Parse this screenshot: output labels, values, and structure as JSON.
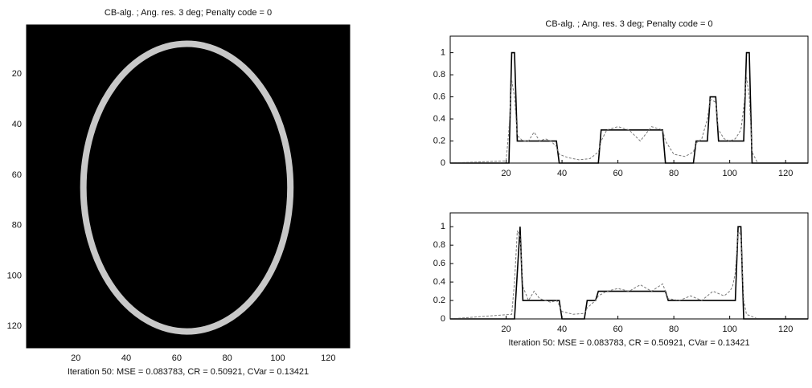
{
  "chart_data": [
    {
      "type": "image",
      "title": "CB-alg. ; Ang. res. 3 deg;  Penalty code = 0",
      "x_label": "Iteration 50:  MSE = 0.083783,  CR = 0.50921,  CVar = 0.13421",
      "xlim": [
        0.5,
        128.5
      ],
      "ylim": [
        128.5,
        0.5
      ],
      "xticks": [
        20,
        40,
        60,
        80,
        100,
        120
      ],
      "yticks": [
        20,
        40,
        60,
        80,
        100,
        120
      ],
      "ellipse": {
        "cx": 64,
        "cy": 65,
        "rx": 41,
        "ry": 57
      }
    },
    {
      "type": "line",
      "title": "CB-alg. ; Ang. res. 3 deg;  Penalty code = 0",
      "x": [
        0,
        20,
        21,
        22,
        23,
        24,
        26,
        28,
        30,
        32,
        34,
        36,
        38,
        39,
        42,
        46,
        50,
        53,
        54,
        56,
        60,
        64,
        68,
        72,
        76,
        77,
        80,
        84,
        87,
        88,
        90,
        92,
        93,
        95,
        96,
        98,
        100,
        102,
        104,
        105,
        106,
        107,
        108,
        110,
        128
      ],
      "series": [
        {
          "color": "#000000",
          "style": "solid",
          "values": [
            0,
            0,
            0,
            1,
            1,
            0.2,
            0.2,
            0.2,
            0.2,
            0.2,
            0.2,
            0.2,
            0.2,
            0,
            0,
            0,
            0,
            0,
            0.3,
            0.3,
            0.3,
            0.3,
            0.3,
            0.3,
            0.3,
            0,
            0,
            0,
            0,
            0.2,
            0.2,
            0.2,
            0.6,
            0.6,
            0.2,
            0.2,
            0.2,
            0.2,
            0.2,
            0.2,
            1,
            1,
            0,
            0,
            0
          ]
        },
        {
          "color": "#777777",
          "style": "dashed",
          "values": [
            0,
            0.02,
            0.3,
            0.75,
            0.6,
            0.25,
            0.2,
            0.2,
            0.28,
            0.2,
            0.22,
            0.2,
            0.15,
            0.08,
            0.05,
            0.03,
            0.04,
            0.1,
            0.2,
            0.3,
            0.33,
            0.3,
            0.2,
            0.33,
            0.3,
            0.2,
            0.08,
            0.06,
            0.1,
            0.18,
            0.22,
            0.4,
            0.58,
            0.55,
            0.3,
            0.22,
            0.2,
            0.22,
            0.3,
            0.5,
            0.78,
            0.6,
            0.1,
            0,
            0
          ]
        }
      ],
      "xlim": [
        0,
        128
      ],
      "ylim": [
        0,
        1.15
      ],
      "xticks": [
        20,
        40,
        60,
        80,
        100,
        120
      ],
      "yticks": [
        0,
        0.2,
        0.4,
        0.6,
        0.8,
        1
      ]
    },
    {
      "type": "line",
      "x_label": "Iteration 50:  MSE = 0.083783,  CR = 0.50921,  CVar = 0.13421",
      "x": [
        0,
        22,
        23,
        24,
        25,
        26,
        28,
        30,
        32,
        34,
        36,
        38,
        39,
        40,
        44,
        48,
        49,
        52,
        53,
        56,
        60,
        64,
        68,
        72,
        76,
        77,
        78,
        82,
        86,
        90,
        94,
        98,
        100,
        101,
        102,
        103,
        104,
        105,
        106,
        110,
        128
      ],
      "series": [
        {
          "color": "#000000",
          "style": "solid",
          "values": [
            0,
            0,
            0,
            0.5,
            1,
            0.2,
            0.2,
            0.2,
            0.2,
            0.2,
            0.2,
            0.2,
            0.2,
            0,
            0,
            0,
            0.2,
            0.2,
            0.3,
            0.3,
            0.3,
            0.3,
            0.3,
            0.3,
            0.3,
            0.3,
            0.2,
            0.2,
            0.2,
            0.2,
            0.2,
            0.2,
            0.2,
            0.2,
            0.2,
            1,
            1,
            0,
            0,
            0,
            0
          ]
        },
        {
          "color": "#777777",
          "style": "dashed",
          "values": [
            0,
            0.05,
            0.4,
            0.95,
            0.9,
            0.35,
            0.2,
            0.3,
            0.22,
            0.2,
            0.18,
            0.2,
            0.15,
            0.08,
            0.05,
            0.06,
            0.12,
            0.2,
            0.25,
            0.3,
            0.33,
            0.3,
            0.37,
            0.3,
            0.38,
            0.3,
            0.22,
            0.2,
            0.25,
            0.2,
            0.3,
            0.25,
            0.3,
            0.35,
            0.5,
            0.95,
            0.9,
            0.2,
            0.05,
            0,
            0
          ]
        }
      ],
      "xlim": [
        0,
        128
      ],
      "ylim": [
        0,
        1.15
      ],
      "xticks": [
        20,
        40,
        60,
        80,
        100,
        120
      ],
      "yticks": [
        0,
        0.2,
        0.4,
        0.6,
        0.8,
        1
      ]
    }
  ]
}
